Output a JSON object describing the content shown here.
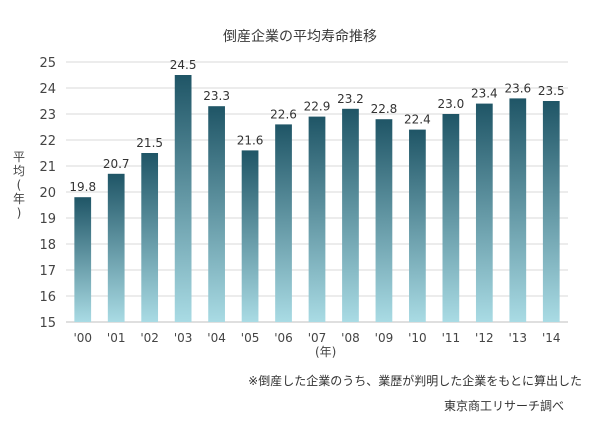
{
  "chart_data": {
    "type": "bar",
    "title": "倒産企業の平均寿命推移",
    "ylabel_chars": [
      "平",
      "均",
      "(",
      "年",
      ")"
    ],
    "xunit": "(年)",
    "categories": [
      "'00",
      "'01",
      "'02",
      "'03",
      "'04",
      "'05",
      "'06",
      "'07",
      "'08",
      "'09",
      "'10",
      "'11",
      "'12",
      "'13",
      "'14"
    ],
    "values": [
      19.8,
      20.7,
      21.5,
      24.5,
      23.3,
      21.6,
      22.6,
      22.9,
      23.2,
      22.8,
      22.4,
      23.0,
      23.4,
      23.6,
      23.5
    ],
    "value_labels": [
      "19.8",
      "20.7",
      "21.5",
      "24.5",
      "23.3",
      "21.6",
      "22.6",
      "22.9",
      "23.2",
      "22.8",
      "22.4",
      "23.0",
      "23.4",
      "23.6",
      "23.5"
    ],
    "ylim": [
      15,
      25
    ],
    "yticks": [
      15,
      16,
      17,
      18,
      19,
      20,
      21,
      22,
      23,
      24,
      25
    ],
    "grid": true,
    "legend": "none",
    "colors": {
      "bar_top": "#1f5566",
      "bar_bottom": "#a9dbe4",
      "grid": "#d8d8d8",
      "axis": "#bfbfbf"
    }
  },
  "footnotes": {
    "note": "※倒産した企業のうち、業歴が判明した企業をもとに算出した",
    "source": "東京商工リサーチ調べ"
  }
}
